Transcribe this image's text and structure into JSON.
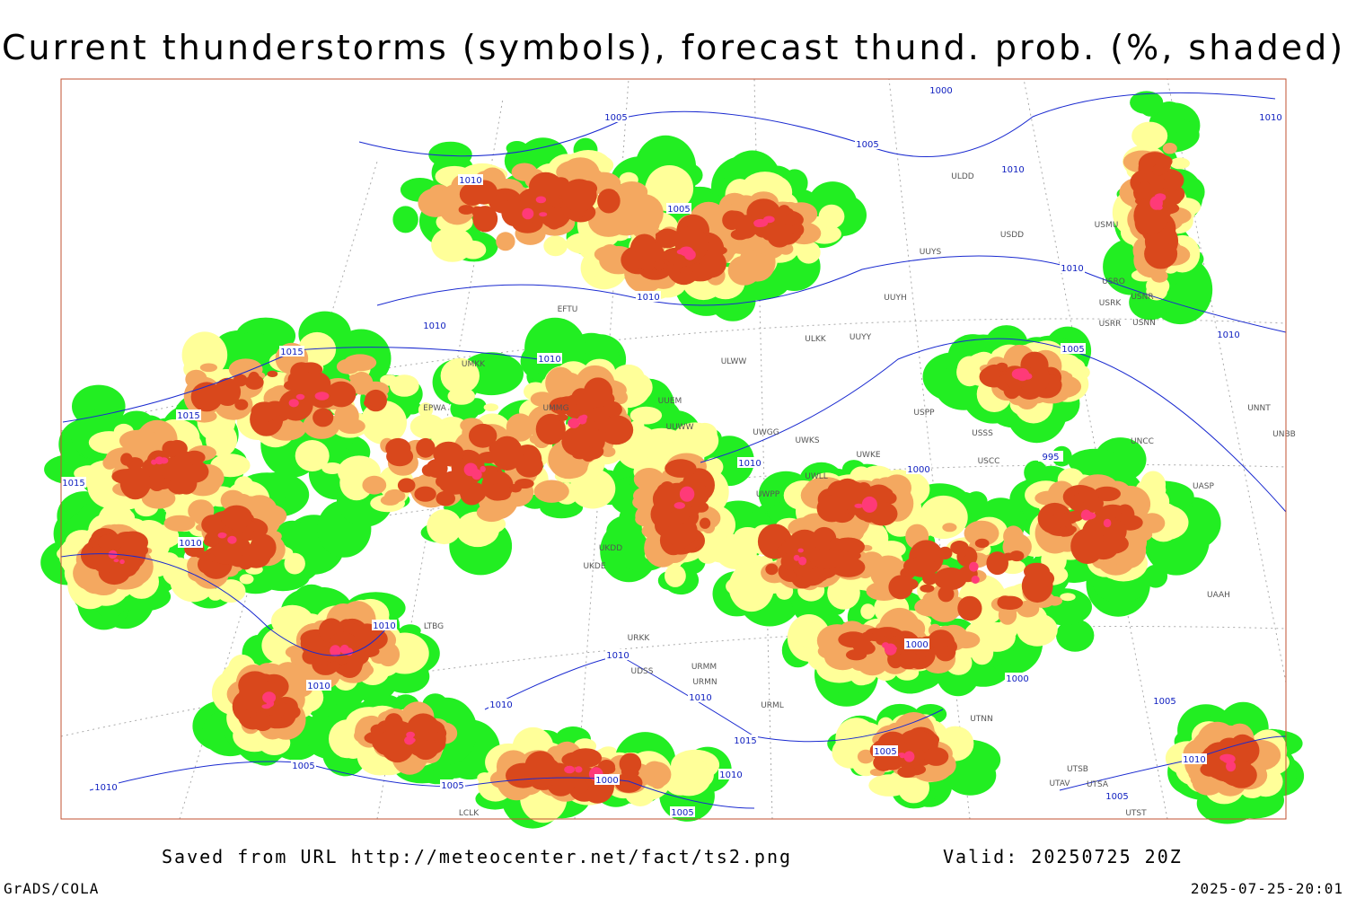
{
  "header": {
    "title": "Current thunderstorms (symbols), forecast thund. prob. (%, shaded)"
  },
  "footer": {
    "saved": "Saved from URL http://meteocenter.net/fact/ts2.png",
    "valid": "Valid: 20250725 20Z",
    "credit": "GrADS/COLA",
    "timestamp": "2025-07-25-20:01"
  },
  "isobar_labels": [
    "1000",
    "1005",
    "1010",
    "1005",
    "1010",
    "1010",
    "1005",
    "1010",
    "1010",
    "1010",
    "1010",
    "1005",
    "1015",
    "1010",
    "1015",
    "1010",
    "1000",
    "995",
    "1015",
    "1010",
    "1010",
    "1010",
    "1000",
    "1000",
    "1010",
    "1010",
    "1010",
    "1005",
    "1015",
    "1005",
    "1005",
    "1010",
    "1000",
    "1005",
    "1010",
    "1005",
    "1005",
    "1010"
  ],
  "stations": [
    "ULDD",
    "USMU",
    "USDD",
    "UUYS",
    "USRO",
    "USRK",
    "USNR",
    "UUYH",
    "USRR",
    "USNN",
    "ULKK",
    "UUYY",
    "ULWW",
    "UUEM",
    "UUWW",
    "UWGG",
    "UWKS",
    "UWKE",
    "USPP",
    "USSS",
    "USCC",
    "UNNT",
    "UNBB",
    "UNCC",
    "UASP",
    "UAAH",
    "UWPP",
    "UWLL",
    "URKK",
    "URMM",
    "URMN",
    "URML",
    "UTNN",
    "UTSB",
    "UTSA",
    "UTAV",
    "UTST",
    "LCLK",
    "UDSS",
    "LTBG",
    "UKDD",
    "UKDE",
    "UMMG",
    "EFTU",
    "UMKK",
    "EPWA"
  ]
}
